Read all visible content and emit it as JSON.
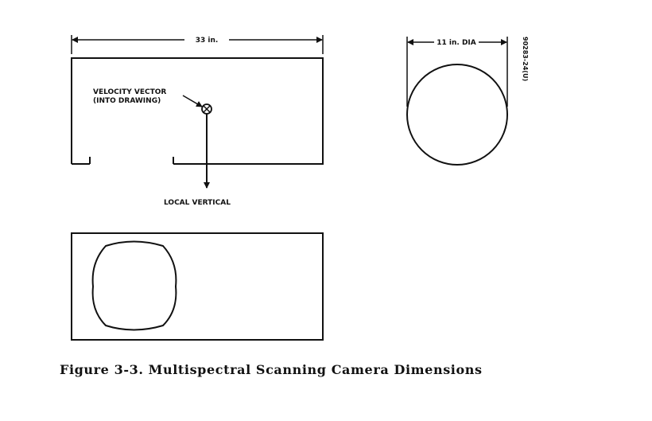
{
  "labels": {
    "width": "33 in.",
    "diameter": "11 in. DIA",
    "velocity_line1": "VELOCITY VECTOR",
    "velocity_line2": "(INTO DRAWING)",
    "local_vertical": "LOCAL VERTICAL",
    "code": "90283-24(U)"
  },
  "caption": "Figure 3-3.  Multispectral Scanning Camera Dimensions"
}
